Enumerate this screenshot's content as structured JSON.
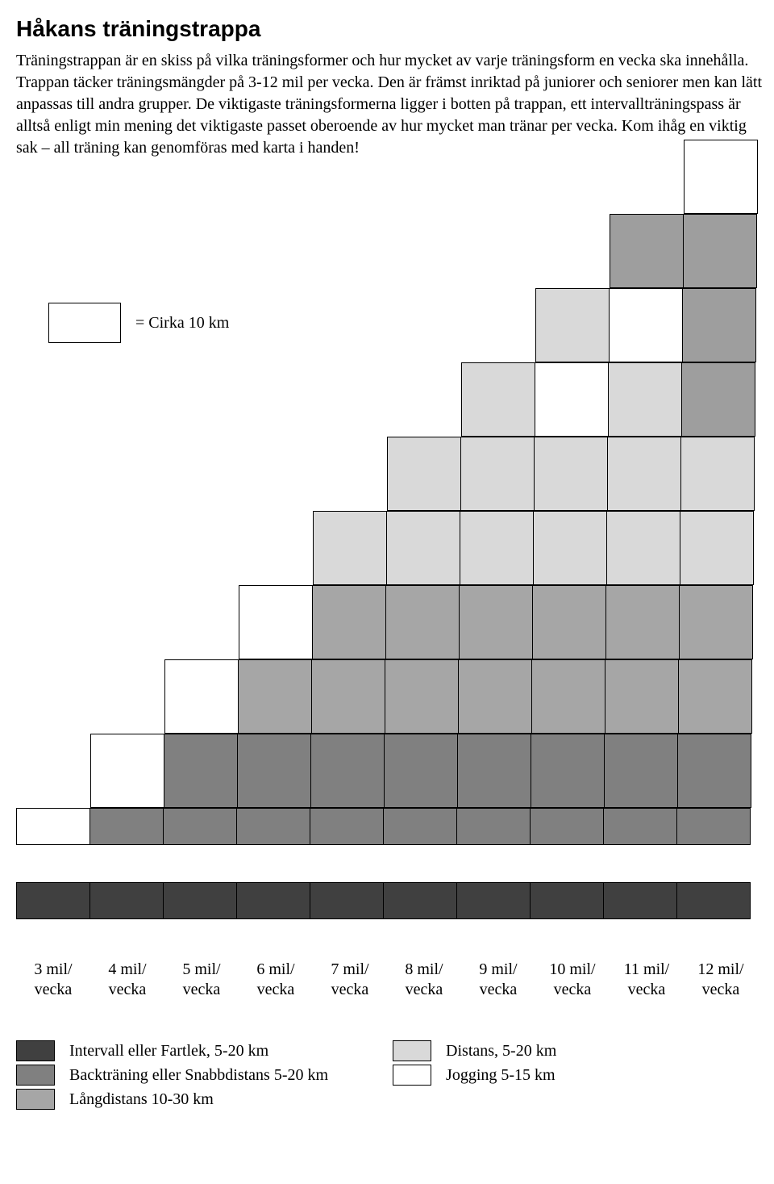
{
  "title": "Håkans träningstrappa",
  "intro": "Träningstrappan är en skiss på vilka träningsformer och hur mycket av varje träningsform en vecka ska innehålla. Trappan täcker träningsmängder på 3-12 mil per vecka. Den är främst inriktad på juniorer och seniorer men kan lätt anpassas till andra grupper. De viktigaste träningsformerna ligger i botten på trappan, ett intervallträningspass är alltså enligt min mening det viktigaste passet oberoende av hur mycket man tränar per vecka. Kom ihåg en viktig sak – all träning kan genomföras med karta i handen!",
  "cirka_label": "= Cirka 10 km",
  "colors": {
    "intervall": "#404040",
    "back": "#808080",
    "lang": "#a6a6a6",
    "distans": "#d9d9d9",
    "jogging": "#ffffff",
    "grey_mid": "#9e9e9e"
  },
  "stair": {
    "comment": "rows top to bottom; each cell has fill key (null = empty, no border)",
    "rows": [
      {
        "h": "full",
        "cells": [
          null,
          null,
          null,
          null,
          null,
          null,
          null,
          null,
          null,
          "jogging"
        ]
      },
      {
        "h": "full",
        "cells": [
          null,
          null,
          null,
          null,
          null,
          null,
          null,
          null,
          "grey_mid",
          "grey_mid"
        ]
      },
      {
        "h": "full",
        "cells": [
          null,
          null,
          null,
          null,
          null,
          null,
          null,
          "distans",
          "jogging",
          "grey_mid"
        ]
      },
      {
        "h": "full",
        "cells": [
          null,
          null,
          null,
          null,
          null,
          null,
          "distans",
          "jogging",
          "distans",
          "grey_mid"
        ]
      },
      {
        "h": "full",
        "cells": [
          null,
          null,
          null,
          null,
          null,
          "distans",
          "distans",
          "distans",
          "distans",
          "distans"
        ]
      },
      {
        "h": "full",
        "cells": [
          null,
          null,
          null,
          null,
          "distans",
          "distans",
          "distans",
          "distans",
          "distans",
          "distans"
        ]
      },
      {
        "h": "full",
        "cells": [
          null,
          null,
          null,
          "jogging",
          "lang",
          "lang",
          "lang",
          "lang",
          "lang",
          "lang"
        ]
      },
      {
        "h": "full",
        "cells": [
          null,
          null,
          "jogging",
          "lang",
          "lang",
          "lang",
          "lang",
          "lang",
          "lang",
          "lang"
        ]
      },
      {
        "h": "full",
        "cells": [
          null,
          "jogging",
          "back",
          "back",
          "back",
          "back",
          "back",
          "back",
          "back",
          "back"
        ]
      },
      {
        "h": "half",
        "cells": [
          "jogging",
          "back",
          "back",
          "back",
          "back",
          "back",
          "back",
          "back",
          "back",
          "back"
        ]
      },
      {
        "h": "half",
        "cells": [
          "intervall",
          "intervall",
          "intervall",
          "intervall",
          "intervall",
          "intervall",
          "intervall",
          "intervall",
          "intervall",
          "intervall"
        ]
      }
    ]
  },
  "xaxis": [
    {
      "l1": "3 mil/",
      "l2": "vecka"
    },
    {
      "l1": "4 mil/",
      "l2": "vecka"
    },
    {
      "l1": "5 mil/",
      "l2": "vecka"
    },
    {
      "l1": "6 mil/",
      "l2": "vecka"
    },
    {
      "l1": "7 mil/",
      "l2": "vecka"
    },
    {
      "l1": "8 mil/",
      "l2": "vecka"
    },
    {
      "l1": "9 mil/",
      "l2": "vecka"
    },
    {
      "l1": "10 mil/",
      "l2": "vecka"
    },
    {
      "l1": "11 mil/",
      "l2": "vecka"
    },
    {
      "l1": "12 mil/",
      "l2": "vecka"
    }
  ],
  "legend_left": [
    {
      "key": "intervall",
      "label": "Intervall eller Fartlek, 5-20 km"
    },
    {
      "key": "back",
      "label": "Backträning eller Snabbdistans 5-20 km"
    },
    {
      "key": "lang",
      "label": "Långdistans 10-30 km"
    }
  ],
  "legend_right": [
    {
      "key": "distans",
      "label": "Distans, 5-20 km"
    },
    {
      "key": "jogging",
      "label": "Jogging 5-15 km"
    }
  ]
}
